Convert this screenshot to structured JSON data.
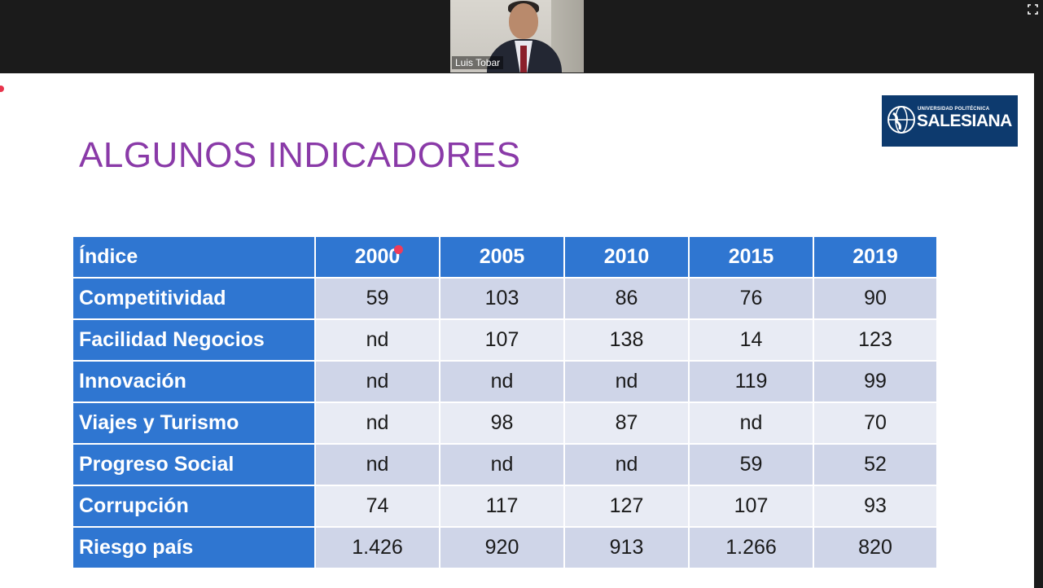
{
  "participant": {
    "name": "Luis Tobar"
  },
  "slide": {
    "title": "ALGUNOS INDICADORES",
    "logo": {
      "small": "UNIVERSIDAD POLITÉCNICA",
      "big": "SALESIANA"
    }
  },
  "table": {
    "headers": [
      "Índice",
      "2000",
      "2005",
      "2010",
      "2015",
      "2019"
    ],
    "rows": [
      {
        "label": "Competitividad",
        "values": [
          "59",
          "103",
          "86",
          "76",
          "90"
        ]
      },
      {
        "label": "Facilidad Negocios",
        "values": [
          "nd",
          "107",
          "138",
          "14",
          "123"
        ]
      },
      {
        "label": "Innovación",
        "values": [
          "nd",
          "nd",
          "nd",
          "119",
          "99"
        ]
      },
      {
        "label": "Viajes y Turismo",
        "values": [
          "nd",
          "98",
          "87",
          "nd",
          "70"
        ]
      },
      {
        "label": "Progreso Social",
        "values": [
          "nd",
          "nd",
          "nd",
          "59",
          "52"
        ]
      },
      {
        "label": "Corrupción",
        "values": [
          "74",
          "117",
          "127",
          "107",
          "93"
        ]
      },
      {
        "label": "Riesgo país",
        "values": [
          "1.426",
          "920",
          "913",
          "1.266",
          "820"
        ]
      }
    ]
  },
  "colors": {
    "header_blue": "#2f76d1",
    "title_purple": "#8a3aa8",
    "logo_navy": "#0d3a6e"
  }
}
